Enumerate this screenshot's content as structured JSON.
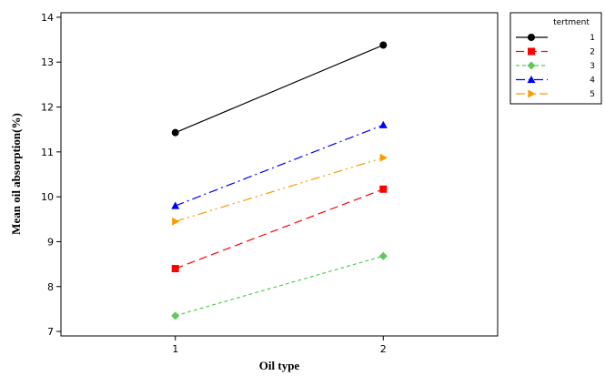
{
  "chart_data": {
    "type": "line",
    "title": "",
    "xlabel": "Oil type",
    "ylabel": "Mean oil absorption(%)",
    "categories": [
      "1",
      "2"
    ],
    "x": [
      1,
      2
    ],
    "xlim": [
      0.45,
      2.55
    ],
    "ylim": [
      6.9,
      14.1
    ],
    "yticks": [
      7,
      8,
      9,
      10,
      11,
      12,
      13,
      14
    ],
    "grid": false,
    "legend": {
      "title": "tertment",
      "position": "top-right",
      "entries": [
        "1",
        "2",
        "3",
        "4",
        "5"
      ]
    },
    "series": [
      {
        "name": "1",
        "values": [
          11.43,
          13.38
        ],
        "color": "#000000",
        "marker": "circle",
        "dash": ""
      },
      {
        "name": "2",
        "values": [
          8.4,
          10.17
        ],
        "color": "#ff0000",
        "marker": "square",
        "dash": "9,5"
      },
      {
        "name": "3",
        "values": [
          7.35,
          8.68
        ],
        "color": "#5dc95d",
        "marker": "diamond",
        "dash": "4,3"
      },
      {
        "name": "4",
        "values": [
          9.8,
          11.6
        ],
        "color": "#0000ff",
        "marker": "triangle",
        "dash": "10,4,2,4"
      },
      {
        "name": "5",
        "values": [
          9.45,
          10.87
        ],
        "color": "#ff9900",
        "marker": "triangle-right",
        "dash": "10,4,2,4,2,4"
      }
    ]
  }
}
